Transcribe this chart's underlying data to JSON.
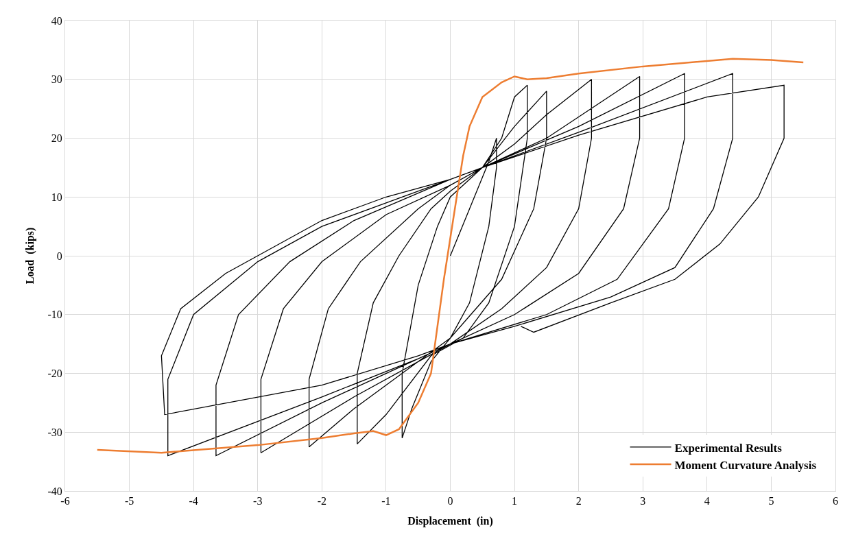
{
  "chart_data": {
    "type": "line",
    "xlabel": "Displacement  (in)",
    "ylabel": "Load  (kips)",
    "xlim": [
      -6,
      6
    ],
    "xticks": [
      -6,
      -5,
      -4,
      -3,
      -2,
      -1,
      0,
      1,
      2,
      3,
      4,
      5,
      6
    ],
    "ylim": [
      -40,
      40
    ],
    "yticks": [
      -40,
      -30,
      -20,
      -10,
      0,
      10,
      20,
      30,
      40
    ],
    "grid": true,
    "legend": "bottom right",
    "marker": "none",
    "line_style": "solid",
    "series": [
      {
        "name": "Experimental Results",
        "color": "#000000",
        "x": [
          0,
          0.3,
          0.6,
          0.72,
          0.72,
          0.6,
          0.3,
          0,
          -0.3,
          -0.6,
          -0.75,
          -0.75,
          -0.5,
          -0.2,
          0,
          0.5,
          0.8,
          1.0,
          1.2,
          1.2,
          1.0,
          0.6,
          0.2,
          -0.3,
          -1.0,
          -1.45,
          -1.45,
          -1.2,
          -0.8,
          -0.3,
          0,
          0.5,
          1.0,
          1.5,
          1.5,
          1.3,
          0.8,
          0,
          -0.5,
          -1.5,
          -2.2,
          -2.2,
          -1.9,
          -1.4,
          -0.5,
          0,
          0.5,
          1,
          1.5,
          2.2,
          2.2,
          2.0,
          1.5,
          0.8,
          0,
          -0.5,
          -1.5,
          -2.95,
          -2.95,
          -2.6,
          -2,
          -1,
          0,
          0.5,
          1.5,
          2.95,
          2.95,
          2.7,
          2,
          1,
          0,
          -0.5,
          -2,
          -3.65,
          -3.65,
          -3.3,
          -2.5,
          -1.5,
          0,
          0.5,
          2,
          3.65,
          3.65,
          3.4,
          2.6,
          1.5,
          0,
          -0.5,
          -2,
          -4.4,
          -4.4,
          -4,
          -3,
          -2,
          -1,
          0,
          0.5,
          2,
          4.4,
          4.4,
          4.1,
          3.5,
          2.5,
          1,
          0,
          -0.5,
          -2,
          -4.45,
          -4.5,
          -4.2,
          -3.5,
          -3,
          -2,
          -1,
          0,
          0.5,
          2,
          4,
          5.2,
          5.2,
          4.8,
          4.2,
          3.5,
          2.5,
          1.3,
          1.1
        ],
        "values": [
          0,
          8,
          16,
          20,
          15,
          5,
          -8,
          -14,
          -18,
          -26,
          -31,
          -20,
          -5,
          5,
          10,
          15,
          20,
          27,
          29,
          20,
          5,
          -8,
          -14,
          -17,
          -27,
          -32,
          -20,
          -8,
          0,
          8,
          11,
          15,
          22,
          28,
          20,
          8,
          -4,
          -14,
          -18,
          -26,
          -32.5,
          -21,
          -9,
          -1,
          8,
          12,
          15,
          19,
          24,
          30,
          20,
          8,
          -2,
          -9,
          -15,
          -18,
          -24,
          -33.5,
          -21,
          -9,
          -1,
          7,
          12,
          15,
          20,
          30.5,
          20,
          8,
          -3,
          -10,
          -15,
          -17.5,
          -25,
          -34,
          -22,
          -10,
          -1,
          6,
          13,
          15,
          22,
          31,
          20,
          8,
          -4,
          -10,
          -15,
          -17.5,
          -24,
          -34,
          -21,
          -10,
          -1,
          5,
          9,
          13,
          15,
          21,
          31,
          20,
          8,
          -2,
          -7,
          -12,
          -15,
          -17,
          -22,
          -27,
          -17,
          -9,
          -3,
          0,
          6,
          10,
          13,
          15,
          20.5,
          27,
          29,
          20,
          10,
          2,
          -4,
          -8,
          -13,
          -12
        ]
      },
      {
        "name": "Moment Curvature Analysis",
        "color": "#ed7d31",
        "x": [
          -5.5,
          -4.5,
          -3,
          -2,
          -1.5,
          -1.2,
          -1,
          -0.8,
          -0.5,
          -0.3,
          -0.2,
          -0.1,
          0,
          0.1,
          0.2,
          0.3,
          0.5,
          0.8,
          1,
          1.2,
          1.5,
          2,
          3,
          4.4,
          5,
          5.5
        ],
        "values": [
          -33,
          -33.5,
          -32.2,
          -31,
          -30.2,
          -29.8,
          -30.5,
          -29.5,
          -25,
          -20,
          -12,
          -4,
          3,
          10,
          17,
          22,
          27,
          29.5,
          30.5,
          30,
          30.2,
          31,
          32.2,
          33.5,
          33.3,
          32.9
        ]
      }
    ]
  }
}
